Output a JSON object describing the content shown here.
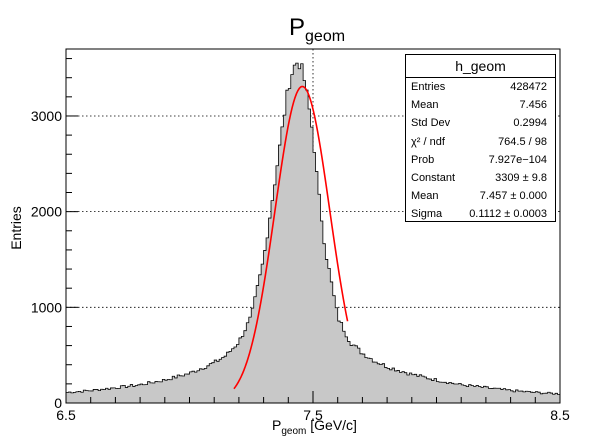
{
  "chart_data": {
    "type": "histogram",
    "title_main": "P",
    "title_sub": "geom",
    "xlabel_main": "P",
    "xlabel_sub": "geom",
    "xlabel_unit": " [GeV/c]",
    "ylabel": "Entries",
    "xlim": [
      6.5,
      8.5
    ],
    "ylim": [
      0,
      3700
    ],
    "x_ticks": [
      6.5,
      7.5,
      8.5
    ],
    "x_tick_labels": [
      "6.5",
      "7.5",
      "8.5"
    ],
    "y_ticks": [
      0,
      1000,
      2000,
      3000
    ],
    "y_tick_labels": [
      "0",
      "1000",
      "2000",
      "3000"
    ],
    "grid": true,
    "fill_color": "#c8c8c8",
    "line_color": "#000000",
    "fit_color": "#ff0000",
    "histogram_series": {
      "name": "h_geom",
      "x": [
        6.5,
        6.6,
        6.7,
        6.8,
        6.9,
        7.0,
        7.1,
        7.15,
        7.2,
        7.25,
        7.3,
        7.35,
        7.38,
        7.4,
        7.42,
        7.44,
        7.46,
        7.48,
        7.5,
        7.52,
        7.55,
        7.6,
        7.65,
        7.7,
        7.75,
        7.8,
        7.9,
        8.0,
        8.1,
        8.2,
        8.3,
        8.4,
        8.5
      ],
      "y": [
        110,
        130,
        160,
        190,
        240,
        310,
        420,
        500,
        640,
        900,
        1500,
        2400,
        2950,
        3300,
        3500,
        3580,
        3450,
        3150,
        2800,
        2250,
        1600,
        900,
        640,
        520,
        440,
        380,
        300,
        240,
        190,
        160,
        130,
        110,
        95
      ]
    },
    "fit_curve": {
      "name": "gaus",
      "constant": 3309,
      "mean": 7.457,
      "sigma": 0.1112,
      "x_range": [
        7.18,
        7.64
      ]
    }
  },
  "stats": {
    "title": "h_geom",
    "rows": [
      {
        "label": "Entries",
        "value": "428472"
      },
      {
        "label": "Mean",
        "value": "7.456"
      },
      {
        "label": "Std Dev",
        "value": "0.2994"
      },
      {
        "label": "χ² / ndf",
        "value": "764.5 / 98"
      },
      {
        "label": "Prob",
        "value": "7.927e−104"
      },
      {
        "label": "Constant",
        "value": "3309 ± 9.8"
      },
      {
        "label": "Mean",
        "value": "7.457 ± 0.000"
      },
      {
        "label": "Sigma",
        "value": "0.1112 ± 0.0003"
      }
    ]
  }
}
